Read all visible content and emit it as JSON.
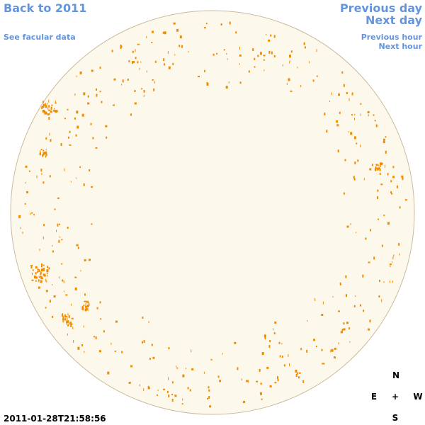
{
  "navigation": {
    "back": "Back to 2011",
    "facular": "See facular data",
    "previous_day": "Previous day",
    "next_day": "Next day",
    "previous_hour": "Previous hour",
    "next_hour": "Next hour"
  },
  "timestamp": "2011-01-28T21:58:56",
  "compass": {
    "north": "N",
    "east": "E",
    "center": "+",
    "west": "W",
    "south": "S"
  }
}
